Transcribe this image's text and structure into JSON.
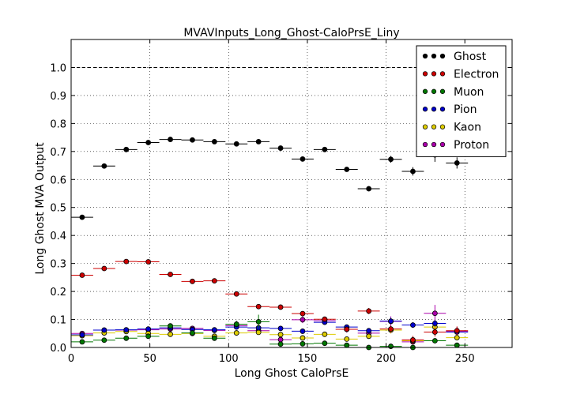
{
  "chart_data": {
    "type": "scatter",
    "title": "MVAVInputs_Long_Ghost-CaloPrsE_Liny",
    "xlabel": "Long Ghost CaloPrsE",
    "ylabel": "Long Ghost MVA Output",
    "xlim": [
      0,
      280
    ],
    "ylim": [
      0,
      1.1
    ],
    "xticks": [
      "0",
      "50",
      "100",
      "150",
      "200",
      "250"
    ],
    "yticks": [
      "0.0",
      "0.1",
      "0.2",
      "0.3",
      "0.4",
      "0.5",
      "0.6",
      "0.7",
      "0.8",
      "0.9",
      "1.0"
    ],
    "reference_line": 1.0,
    "grid": true,
    "legend_position": "top-right",
    "bin_half_width": 7,
    "x": [
      7,
      21,
      35,
      49,
      63,
      77,
      91,
      105,
      119,
      133,
      147,
      161,
      175,
      189,
      203,
      217,
      231,
      245
    ],
    "series": [
      {
        "name": "Ghost",
        "color": "#000000",
        "values": [
          0.465,
          0.648,
          0.707,
          0.732,
          0.743,
          0.741,
          0.735,
          0.727,
          0.735,
          0.712,
          0.673,
          0.707,
          0.636,
          0.567,
          0.672,
          0.629,
          0.688,
          0.659
        ],
        "errors": [
          0.004,
          0.004,
          0.004,
          0.004,
          0.004,
          0.004,
          0.004,
          0.004,
          0.005,
          0.005,
          0.006,
          0.007,
          0.008,
          0.009,
          0.012,
          0.015,
          0.025,
          0.02
        ]
      },
      {
        "name": "Electron",
        "color": "#cc0000",
        "values": [
          0.258,
          0.282,
          0.307,
          0.306,
          0.261,
          0.236,
          0.238,
          0.191,
          0.146,
          0.144,
          0.121,
          0.101,
          0.065,
          0.13,
          0.066,
          0.027,
          0.055,
          0.06
        ],
        "errors": [
          0.004,
          0.004,
          0.004,
          0.004,
          0.004,
          0.004,
          0.004,
          0.005,
          0.006,
          0.006,
          0.007,
          0.008,
          0.009,
          0.011,
          0.013,
          0.014,
          0.016,
          0.015
        ]
      },
      {
        "name": "Muon",
        "color": "#007700",
        "values": [
          0.02,
          0.026,
          0.033,
          0.04,
          0.077,
          0.052,
          0.033,
          0.083,
          0.092,
          0.012,
          0.013,
          0.015,
          0.008,
          0.0,
          0.004,
          0.0,
          0.024,
          0.008
        ],
        "errors": [
          0.003,
          0.003,
          0.003,
          0.004,
          0.006,
          0.006,
          0.006,
          0.012,
          0.025,
          0.005,
          0.005,
          0.006,
          0.005,
          0.003,
          0.005,
          0.003,
          0.008,
          0.006
        ]
      },
      {
        "name": "Pion",
        "color": "#0000cc",
        "values": [
          0.045,
          0.062,
          0.063,
          0.066,
          0.07,
          0.064,
          0.063,
          0.073,
          0.07,
          0.068,
          0.058,
          0.09,
          0.073,
          0.06,
          0.094,
          0.08,
          0.086,
          0.055
        ],
        "errors": [
          0.003,
          0.003,
          0.003,
          0.003,
          0.003,
          0.003,
          0.004,
          0.005,
          0.005,
          0.006,
          0.006,
          0.007,
          0.008,
          0.009,
          0.012,
          0.01,
          0.012,
          0.01
        ]
      },
      {
        "name": "Kaon",
        "color": "#ddcc00",
        "values": [
          0.042,
          0.052,
          0.057,
          0.05,
          0.047,
          0.05,
          0.04,
          0.052,
          0.054,
          0.046,
          0.034,
          0.047,
          0.03,
          0.04,
          0.062,
          0.024,
          0.073,
          0.035
        ],
        "errors": [
          0.003,
          0.003,
          0.003,
          0.003,
          0.003,
          0.003,
          0.004,
          0.005,
          0.006,
          0.006,
          0.006,
          0.007,
          0.006,
          0.008,
          0.012,
          0.008,
          0.015,
          0.01
        ]
      },
      {
        "name": "Proton",
        "color": "#aa00aa",
        "values": [
          0.05,
          0.062,
          0.062,
          0.063,
          0.066,
          0.068,
          0.061,
          0.078,
          0.06,
          0.028,
          0.099,
          0.096,
          0.065,
          0.051,
          0.093,
          0.02,
          0.122,
          0.058
        ],
        "errors": [
          0.004,
          0.004,
          0.004,
          0.004,
          0.004,
          0.005,
          0.005,
          0.008,
          0.01,
          0.008,
          0.012,
          0.012,
          0.012,
          0.012,
          0.018,
          0.008,
          0.03,
          0.015
        ]
      }
    ]
  }
}
